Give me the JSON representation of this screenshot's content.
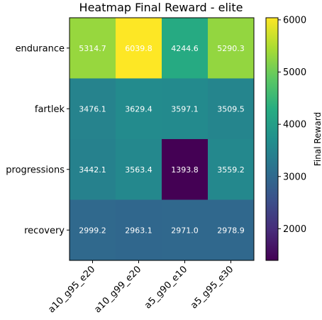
{
  "chart_data": {
    "type": "heatmap",
    "title": "Heatmap Final Reward - elite",
    "rows": [
      "endurance",
      "fartlek",
      "progressions",
      "recovery"
    ],
    "columns": [
      "a10_g95_e20",
      "a10_g99_e20",
      "a5_g90_e10",
      "a5_g95_e30"
    ],
    "values": [
      [
        5314.7,
        6039.8,
        4244.6,
        5290.3
      ],
      [
        3476.1,
        3629.4,
        3597.1,
        3509.5
      ],
      [
        3442.1,
        3563.4,
        1393.8,
        3559.2
      ],
      [
        2999.2,
        2963.1,
        2971.0,
        2978.9
      ]
    ],
    "value_labels": [
      [
        "5314.7",
        "6039.8",
        "4244.6",
        "5290.3"
      ],
      [
        "3476.1",
        "3629.4",
        "3597.1",
        "3509.5"
      ],
      [
        "3442.1",
        "3563.4",
        "1393.8",
        "3559.2"
      ],
      [
        "2999.2",
        "2963.1",
        "2971.0",
        "2978.9"
      ]
    ],
    "colormap": "viridis",
    "colorbar": {
      "label": "Final Reward",
      "range": [
        1393.8,
        6039.8
      ],
      "ticks": [
        2000,
        3000,
        4000,
        5000,
        6000
      ],
      "tick_labels": [
        "2000",
        "3000",
        "4000",
        "5000",
        "6000"
      ]
    }
  }
}
